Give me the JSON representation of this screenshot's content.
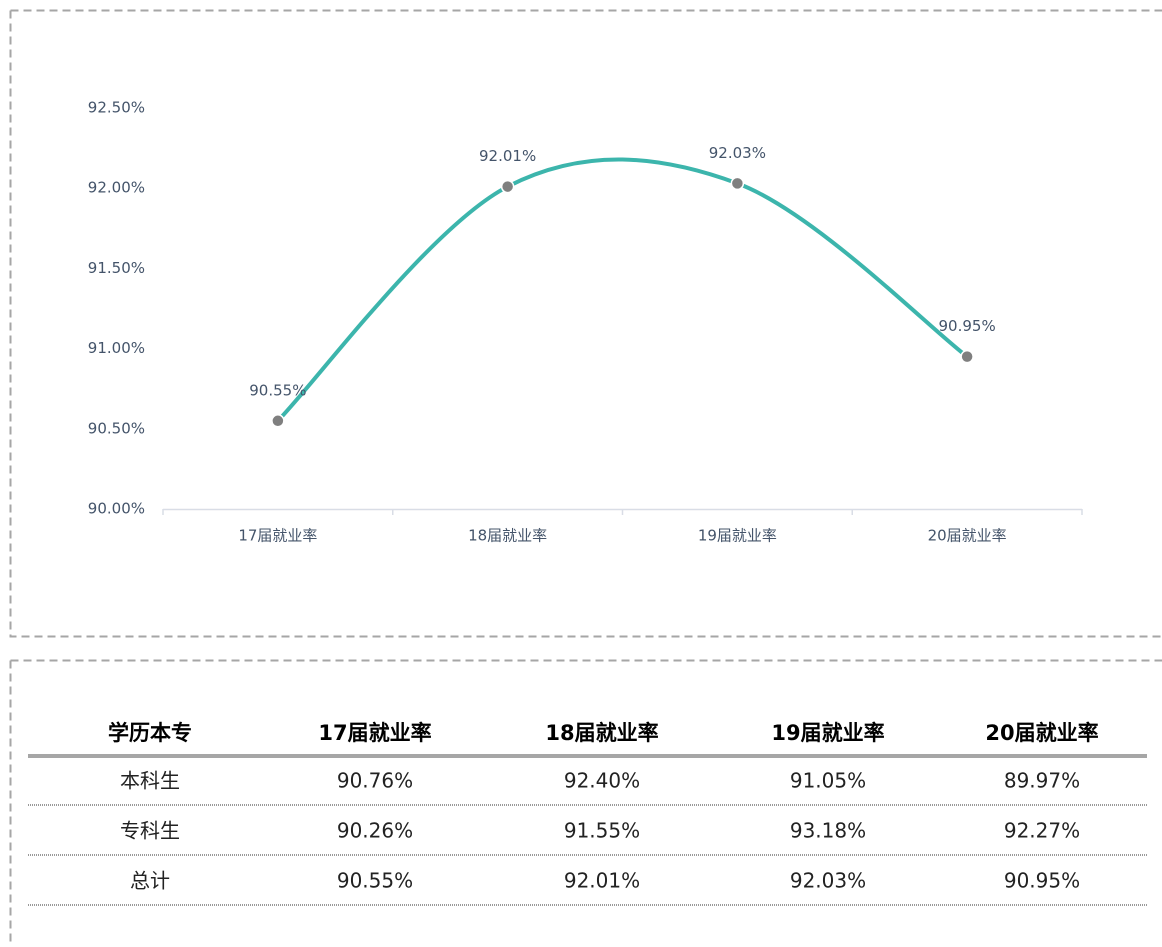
{
  "chart_data": {
    "type": "line",
    "categories": [
      "17届就业率",
      "18届就业率",
      "19届就业率",
      "20届就业率"
    ],
    "values": [
      90.55,
      92.01,
      92.03,
      90.95
    ],
    "value_labels": [
      "90.55%",
      "92.01%",
      "92.03%",
      "90.95%"
    ],
    "color": "#3cb5ac",
    "marker_color": "#7f7f7f",
    "smooth": true,
    "ylim": [
      90,
      92.5
    ],
    "yticks": [
      {
        "value": 90,
        "label": "90.00%"
      },
      {
        "value": 90.5,
        "label": "90.50%"
      },
      {
        "value": 91,
        "label": "91.00%"
      },
      {
        "value": 91.5,
        "label": "91.50%"
      },
      {
        "value": 92,
        "label": "92.00%"
      },
      {
        "value": 92.5,
        "label": "92.50%"
      }
    ]
  },
  "table": {
    "header": [
      "学历本专",
      "17届就业率",
      "18届就业率",
      "19届就业率",
      "20届就业率"
    ],
    "rows": [
      [
        "本科生",
        "90.76%",
        "92.40%",
        "91.05%",
        "89.97%"
      ],
      [
        "专科生",
        "90.26%",
        "91.55%",
        "93.18%",
        "92.27%"
      ],
      [
        "总计",
        "90.55%",
        "92.01%",
        "92.03%",
        "90.95%"
      ]
    ]
  }
}
